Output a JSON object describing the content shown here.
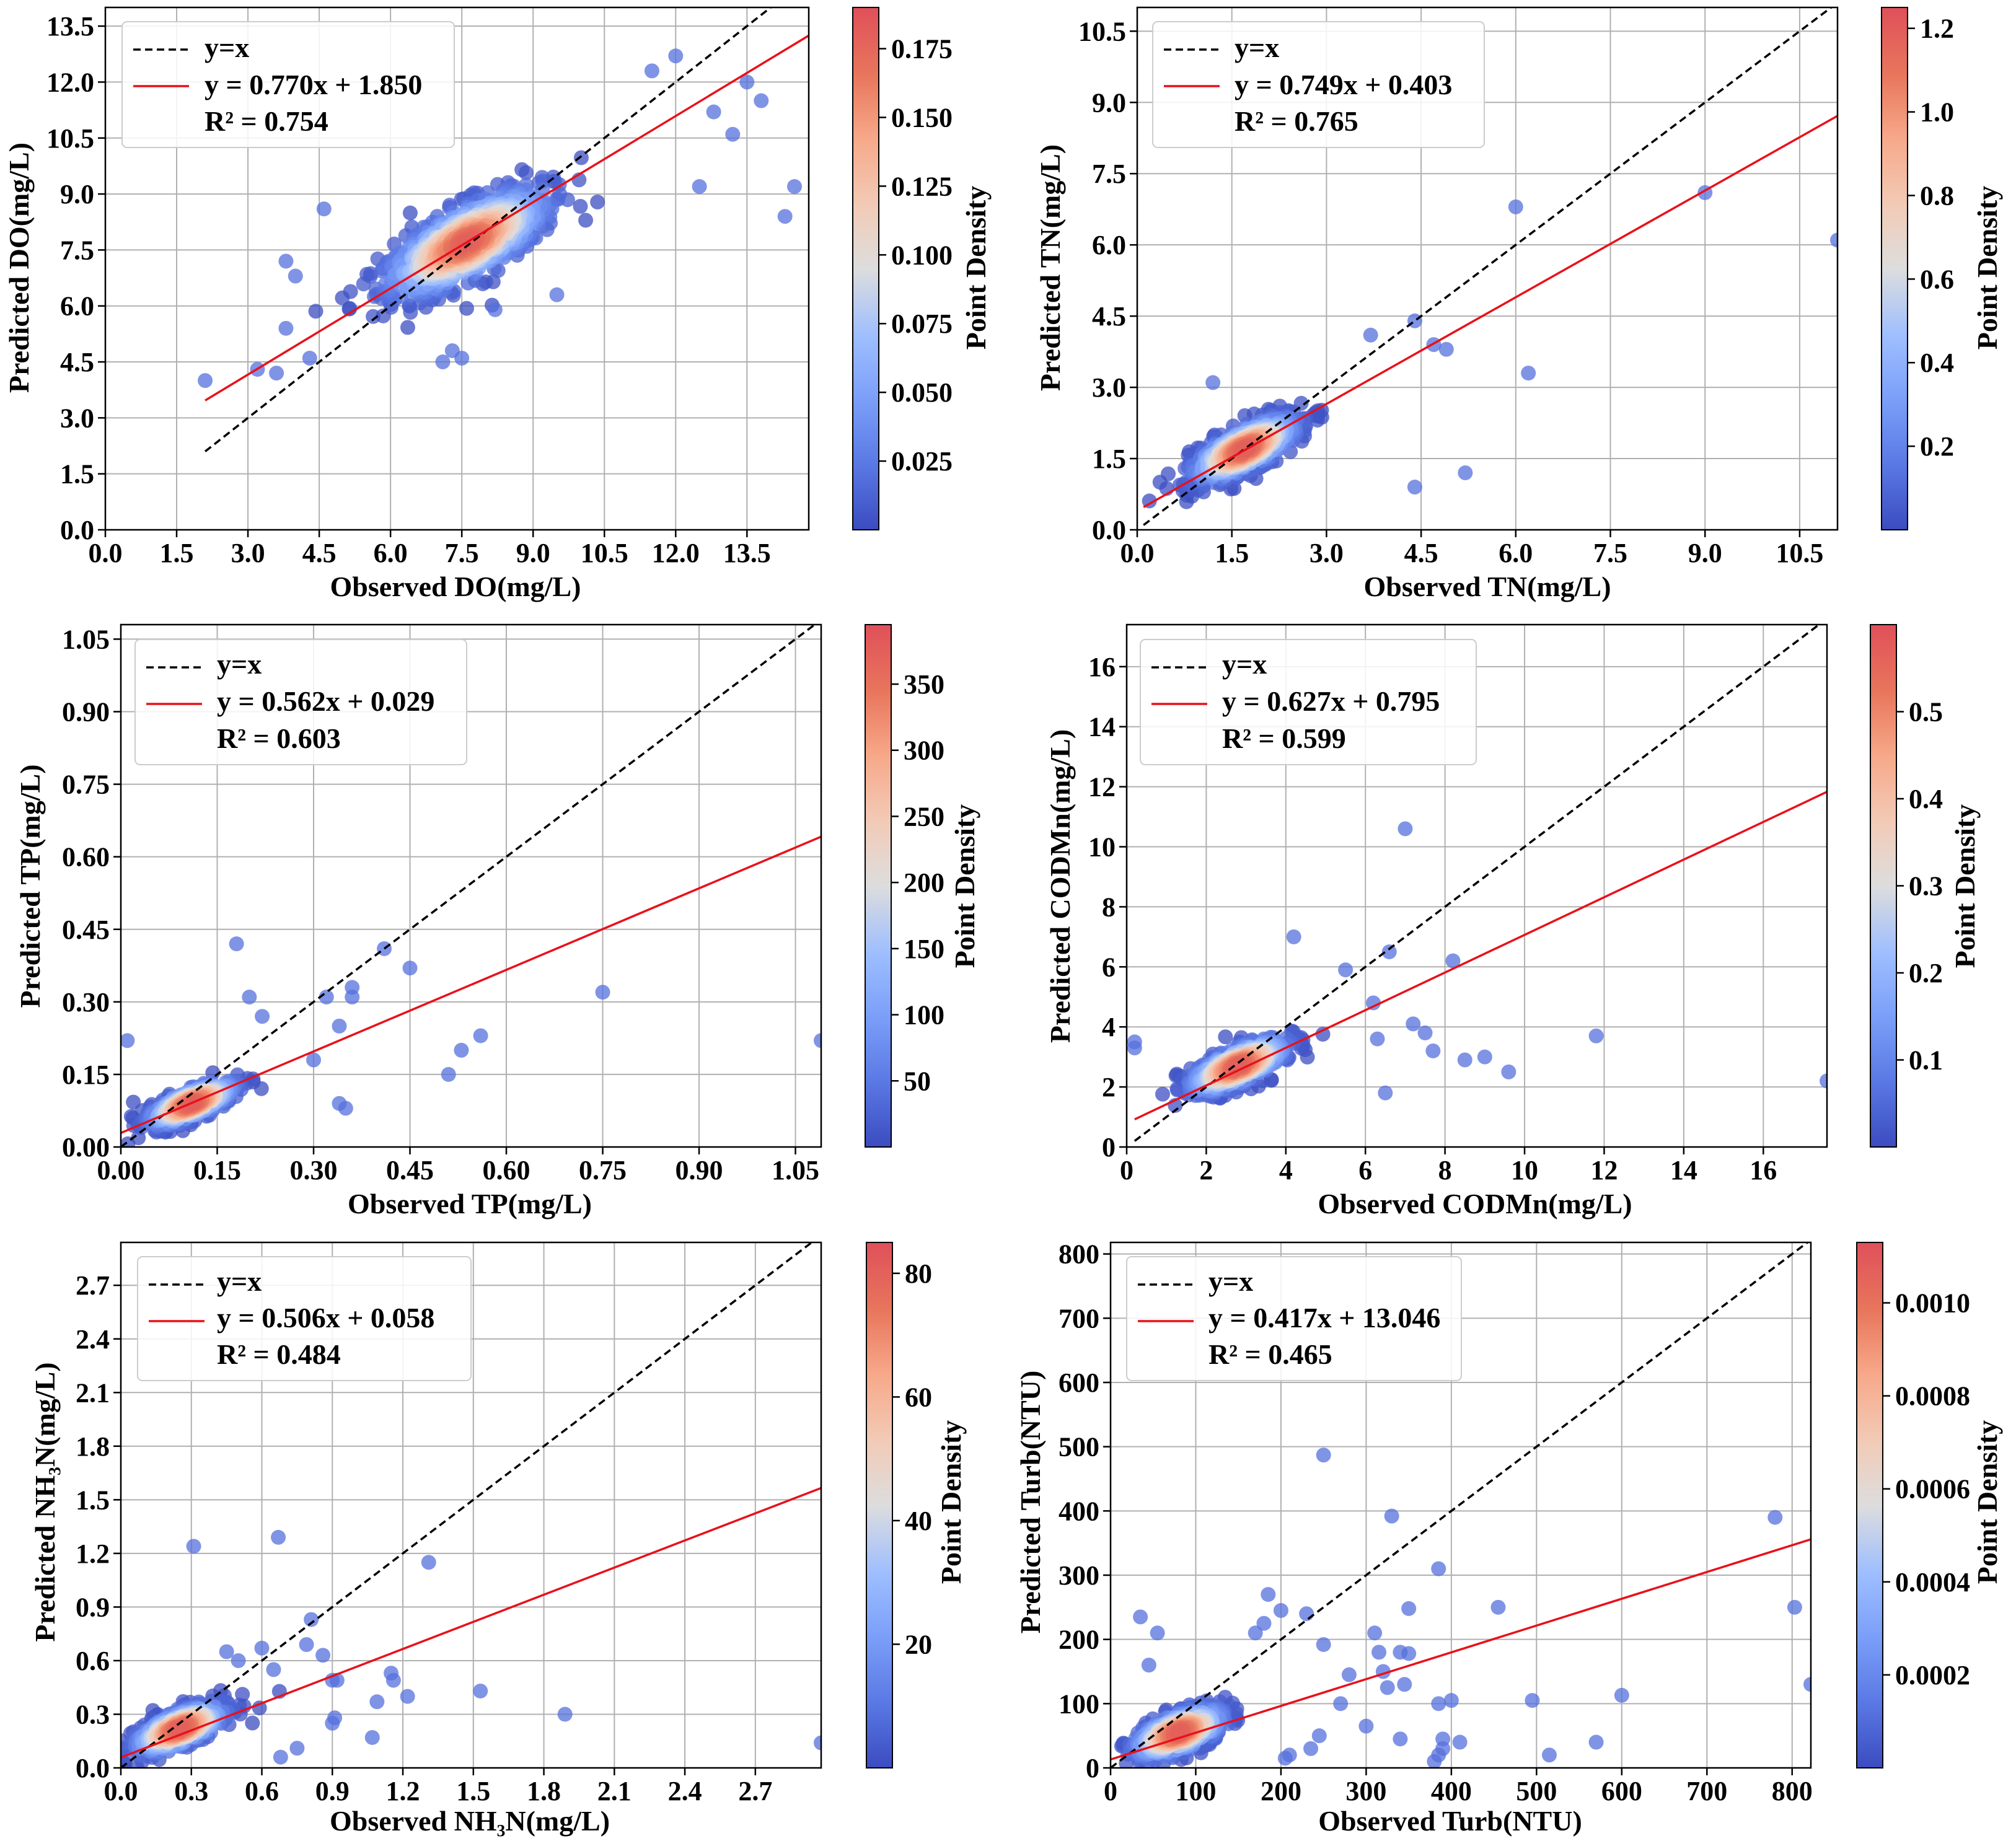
{
  "figure": {
    "colorbar_label": "Point Density",
    "colormap": [
      "#3b4cc0",
      "#6688ee",
      "#88bbff",
      "#b8d0f9",
      "#dddddd",
      "#f5c4ac",
      "#f4987a",
      "#e26952",
      "#b40426"
    ],
    "identity_color": "#000000",
    "fit_color": "#e8111a"
  },
  "chart_data": [
    {
      "type": "scatter",
      "name": "DO",
      "xlabel": "Observed DO(mg/L)",
      "ylabel": "Predicted DO(mg/L)",
      "xlim": [
        0,
        14.8
      ],
      "ylim": [
        0,
        14.0
      ],
      "xticks": [
        0.0,
        1.5,
        3.0,
        4.5,
        6.0,
        7.5,
        9.0,
        10.5,
        12.0,
        13.5
      ],
      "yticks": [
        0.0,
        1.5,
        3.0,
        4.5,
        6.0,
        7.5,
        9.0,
        10.5,
        12.0,
        13.5
      ],
      "tick_decimals": 1,
      "legend": [
        "y=x",
        "y = 0.770x + 1.850",
        "R² = 0.754"
      ],
      "fit": {
        "slope": 0.77,
        "intercept": 1.85,
        "x_range": [
          2.1,
          14.8
        ]
      },
      "identity_range": [
        2.1,
        14.8
      ],
      "colorbar": {
        "ticks": [
          0.025,
          0.05,
          0.075,
          0.1,
          0.125,
          0.15,
          0.175
        ],
        "decimals": 3,
        "range": [
          0.0,
          0.19
        ]
      },
      "cluster": {
        "center": [
          7.6,
          7.7
        ],
        "spread_major": 1.9,
        "spread_minor": 0.75,
        "slope": 0.77,
        "count": 900
      },
      "points": [
        [
          2.1,
          4.0
        ],
        [
          3.2,
          4.3
        ],
        [
          3.6,
          4.2
        ],
        [
          3.8,
          7.2
        ],
        [
          4.0,
          6.8
        ],
        [
          4.3,
          4.6
        ],
        [
          3.8,
          5.4
        ],
        [
          4.6,
          8.6
        ],
        [
          7.1,
          4.5
        ],
        [
          7.3,
          4.8
        ],
        [
          7.5,
          4.6
        ],
        [
          8.2,
          5.9
        ],
        [
          9.5,
          6.3
        ],
        [
          12.5,
          9.2
        ],
        [
          13.2,
          10.6
        ],
        [
          13.5,
          12.0
        ],
        [
          13.8,
          11.5
        ],
        [
          14.3,
          8.4
        ],
        [
          14.5,
          9.2
        ],
        [
          12.0,
          12.7
        ],
        [
          11.5,
          12.3
        ],
        [
          12.8,
          11.2
        ]
      ]
    },
    {
      "type": "scatter",
      "name": "TN",
      "xlabel": "Observed TN(mg/L)",
      "ylabel": "Predicted TN(mg/L)",
      "xlim": [
        0,
        11.1
      ],
      "ylim": [
        0,
        11.0
      ],
      "xticks": [
        0.0,
        1.5,
        3.0,
        4.5,
        6.0,
        7.5,
        9.0,
        10.5
      ],
      "yticks": [
        0.0,
        1.5,
        3.0,
        4.5,
        6.0,
        7.5,
        9.0,
        10.5
      ],
      "tick_decimals": 1,
      "legend": [
        "y=x",
        "y = 0.749x + 0.403",
        "R² = 0.765"
      ],
      "fit": {
        "slope": 0.749,
        "intercept": 0.403,
        "x_range": [
          0.1,
          11.1
        ]
      },
      "identity_range": [
        0.1,
        11.1
      ],
      "colorbar": {
        "ticks": [
          0.2,
          0.4,
          0.6,
          0.8,
          1.0,
          1.2
        ],
        "decimals": 1,
        "range": [
          0.0,
          1.25
        ]
      },
      "cluster": {
        "center": [
          1.7,
          1.7
        ],
        "spread_major": 0.9,
        "spread_minor": 0.35,
        "slope": 0.75,
        "count": 700
      },
      "points": [
        [
          6.0,
          6.8
        ],
        [
          9.0,
          7.1
        ],
        [
          11.1,
          6.1
        ],
        [
          6.2,
          3.3
        ],
        [
          5.2,
          1.2
        ],
        [
          4.4,
          0.9
        ],
        [
          4.7,
          3.9
        ],
        [
          4.9,
          3.8
        ],
        [
          4.4,
          4.4
        ],
        [
          3.7,
          4.1
        ],
        [
          1.2,
          3.1
        ]
      ]
    },
    {
      "type": "scatter",
      "name": "TP",
      "xlabel": "Observed TP(mg/L)",
      "ylabel": "Predicted TP(mg/L)",
      "xlim": [
        0,
        1.09
      ],
      "ylim": [
        0,
        1.08
      ],
      "xticks": [
        0.0,
        0.15,
        0.3,
        0.45,
        0.6,
        0.75,
        0.9,
        1.05
      ],
      "yticks": [
        0.0,
        0.15,
        0.3,
        0.45,
        0.6,
        0.75,
        0.9,
        1.05
      ],
      "tick_decimals": 2,
      "legend": [
        "y=x",
        "y = 0.562x + 0.029",
        "R² = 0.603"
      ],
      "fit": {
        "slope": 0.562,
        "intercept": 0.029,
        "x_range": [
          0.0,
          1.09
        ]
      },
      "identity_range": [
        0.0,
        1.09
      ],
      "colorbar": {
        "ticks": [
          50,
          100,
          150,
          200,
          250,
          300,
          350
        ],
        "decimals": 0,
        "range": [
          0,
          395
        ]
      },
      "cluster": {
        "center": [
          0.11,
          0.09
        ],
        "spread_major": 0.07,
        "spread_minor": 0.025,
        "slope": 0.6,
        "count": 550
      },
      "points": [
        [
          0.18,
          0.42
        ],
        [
          0.41,
          0.41
        ],
        [
          0.45,
          0.37
        ],
        [
          0.36,
          0.33
        ],
        [
          0.36,
          0.31
        ],
        [
          0.32,
          0.31
        ],
        [
          0.34,
          0.25
        ],
        [
          0.75,
          0.32
        ],
        [
          0.56,
          0.23
        ],
        [
          0.51,
          0.15
        ],
        [
          0.53,
          0.2
        ],
        [
          1.09,
          0.22
        ],
        [
          0.34,
          0.09
        ],
        [
          0.35,
          0.08
        ],
        [
          0.3,
          0.18
        ],
        [
          0.22,
          0.27
        ],
        [
          0.2,
          0.31
        ],
        [
          0.01,
          0.22
        ]
      ]
    },
    {
      "type": "scatter",
      "name": "CODMn",
      "xlabel": "Observed CODMn(mg/L)",
      "ylabel": "Predicted CODMn(mg/L)",
      "xlim": [
        0,
        17.6
      ],
      "ylim": [
        0,
        17.4
      ],
      "xticks": [
        0,
        2,
        4,
        6,
        8,
        10,
        12,
        14,
        16
      ],
      "yticks": [
        0,
        2,
        4,
        6,
        8,
        10,
        12,
        14,
        16
      ],
      "tick_decimals": 0,
      "legend": [
        "y=x",
        "y = 0.627x + 0.795",
        "R² = 0.599"
      ],
      "fit": {
        "slope": 0.627,
        "intercept": 0.795,
        "x_range": [
          0.2,
          17.6
        ]
      },
      "identity_range": [
        0.2,
        17.6
      ],
      "colorbar": {
        "ticks": [
          0.1,
          0.2,
          0.3,
          0.4,
          0.5
        ],
        "decimals": 1,
        "range": [
          0.0,
          0.6
        ]
      },
      "cluster": {
        "center": [
          2.8,
          2.7
        ],
        "spread_major": 1.3,
        "spread_minor": 0.5,
        "slope": 0.65,
        "count": 650
      },
      "points": [
        [
          7.0,
          10.6
        ],
        [
          6.6,
          6.5
        ],
        [
          4.2,
          7.0
        ],
        [
          8.2,
          6.2
        ],
        [
          5.5,
          5.9
        ],
        [
          6.2,
          4.8
        ],
        [
          7.2,
          4.1
        ],
        [
          7.5,
          3.8
        ],
        [
          7.7,
          3.2
        ],
        [
          8.5,
          2.9
        ],
        [
          9.0,
          3.0
        ],
        [
          9.6,
          2.5
        ],
        [
          11.8,
          3.7
        ],
        [
          17.6,
          2.2
        ],
        [
          6.5,
          1.8
        ],
        [
          0.2,
          3.3
        ],
        [
          0.2,
          3.5
        ],
        [
          6.3,
          3.6
        ]
      ]
    },
    {
      "type": "scatter",
      "name": "NH3N",
      "xlabel": "Observed NH₃N(mg/L)",
      "ylabel": "Predicted NH₃N(mg/L)",
      "xlim": [
        0,
        2.98
      ],
      "ylim": [
        0,
        2.94
      ],
      "xticks": [
        0.0,
        0.3,
        0.6,
        0.9,
        1.2,
        1.5,
        1.8,
        2.1,
        2.4,
        2.7
      ],
      "yticks": [
        0.0,
        0.3,
        0.6,
        0.9,
        1.2,
        1.5,
        1.8,
        2.1,
        2.4,
        2.7
      ],
      "tick_decimals": 1,
      "legend": [
        "y=x",
        "y = 0.506x + 0.058",
        "R² = 0.484"
      ],
      "fit": {
        "slope": 0.506,
        "intercept": 0.058,
        "x_range": [
          0.0,
          2.98
        ]
      },
      "identity_range": [
        0.0,
        2.98
      ],
      "colorbar": {
        "ticks": [
          20,
          40,
          60,
          80
        ],
        "decimals": 0,
        "range": [
          0,
          85
        ]
      },
      "cluster": {
        "center": [
          0.25,
          0.22
        ],
        "spread_major": 0.2,
        "spread_minor": 0.08,
        "slope": 0.6,
        "count": 550
      },
      "points": [
        [
          0.31,
          1.24
        ],
        [
          0.67,
          1.29
        ],
        [
          1.31,
          1.15
        ],
        [
          0.81,
          0.83
        ],
        [
          0.79,
          0.69
        ],
        [
          0.6,
          0.67
        ],
        [
          0.65,
          0.55
        ],
        [
          0.86,
          0.63
        ],
        [
          0.9,
          0.49
        ],
        [
          0.92,
          0.49
        ],
        [
          0.91,
          0.28
        ],
        [
          0.9,
          0.25
        ],
        [
          1.15,
          0.53
        ],
        [
          1.16,
          0.49
        ],
        [
          1.22,
          0.4
        ],
        [
          1.09,
          0.37
        ],
        [
          1.07,
          0.17
        ],
        [
          1.53,
          0.43
        ],
        [
          1.89,
          0.3
        ],
        [
          2.98,
          0.14
        ],
        [
          0.68,
          0.06
        ],
        [
          0.75,
          0.11
        ],
        [
          0.5,
          0.6
        ],
        [
          0.45,
          0.65
        ]
      ]
    },
    {
      "type": "scatter",
      "name": "Turb",
      "xlabel": "Observed Turb(NTU)",
      "ylabel": "Predicted Turb(NTU)",
      "xlim": [
        0,
        822
      ],
      "ylim": [
        0,
        818
      ],
      "xticks": [
        0,
        100,
        200,
        300,
        400,
        500,
        600,
        700,
        800
      ],
      "yticks": [
        0,
        100,
        200,
        300,
        400,
        500,
        600,
        700,
        800
      ],
      "tick_decimals": 0,
      "legend": [
        "y=x",
        "y = 0.417x + 13.046",
        "R² = 0.465"
      ],
      "fit": {
        "slope": 0.417,
        "intercept": 13.046,
        "x_range": [
          0,
          822
        ]
      },
      "identity_range": [
        0,
        822
      ],
      "colorbar": {
        "ticks": [
          0.0002,
          0.0004,
          0.0006,
          0.0008,
          0.001
        ],
        "decimals": 4,
        "range": [
          0.0,
          0.00113
        ]
      },
      "cluster": {
        "center": [
          80,
          55
        ],
        "spread_major": 55,
        "spread_minor": 25,
        "slope": 0.6,
        "count": 550
      },
      "points": [
        [
          250,
          487
        ],
        [
          330,
          392
        ],
        [
          780,
          390
        ],
        [
          803,
          250
        ],
        [
          822,
          130
        ],
        [
          385,
          310
        ],
        [
          455,
          250
        ],
        [
          350,
          248
        ],
        [
          310,
          210
        ],
        [
          315,
          180
        ],
        [
          340,
          180
        ],
        [
          350,
          178
        ],
        [
          320,
          150
        ],
        [
          325,
          125
        ],
        [
          345,
          130
        ],
        [
          280,
          145
        ],
        [
          250,
          192
        ],
        [
          230,
          240
        ],
        [
          200,
          245
        ],
        [
          185,
          270
        ],
        [
          180,
          225
        ],
        [
          170,
          210
        ],
        [
          495,
          105
        ],
        [
          400,
          105
        ],
        [
          385,
          100
        ],
        [
          410,
          40
        ],
        [
          390,
          45
        ],
        [
          390,
          30
        ],
        [
          385,
          20
        ],
        [
          380,
          10
        ],
        [
          340,
          45
        ],
        [
          300,
          65
        ],
        [
          270,
          100
        ],
        [
          245,
          50
        ],
        [
          235,
          30
        ],
        [
          210,
          20
        ],
        [
          205,
          15
        ],
        [
          515,
          20
        ],
        [
          570,
          40
        ],
        [
          600,
          113
        ],
        [
          35,
          235
        ],
        [
          55,
          210
        ],
        [
          45,
          160
        ]
      ]
    }
  ]
}
